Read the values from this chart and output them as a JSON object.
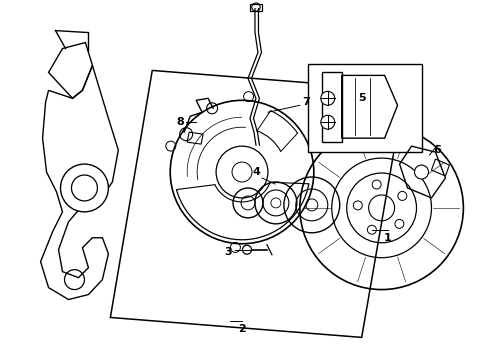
{
  "bg_color": "#ffffff",
  "line_color": "#000000",
  "label_color": "#000000",
  "fig_width": 4.9,
  "fig_height": 3.6,
  "dpi": 100
}
